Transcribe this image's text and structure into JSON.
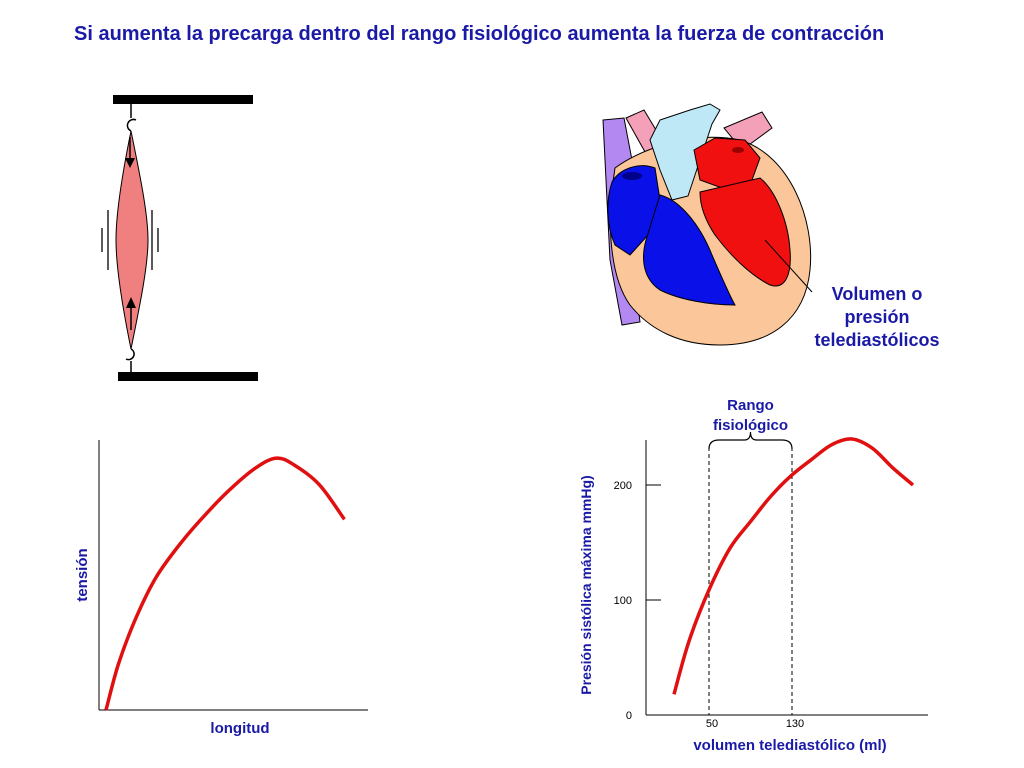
{
  "title": "Si aumenta la precarga dentro del rango fisiológico aumenta la fuerza de contracción",
  "heart_label": {
    "line1": "Volumen o",
    "line2": "presión",
    "line3": "telediastólicos"
  },
  "colors": {
    "text_blue": "#1a1aa6",
    "curve_red": "#e01010",
    "muscle_fill": "#f08080",
    "ventricle_blue": "#0a10e8",
    "ventricle_red": "#f01010",
    "heart_skin": "#fbc79a",
    "vessel_purple": "#b388f0",
    "vessel_light_blue": "#bfe8f7",
    "vessel_pink": "#f4a0b8"
  },
  "chart_data": [
    {
      "type": "line",
      "title": "",
      "xlabel": "longitud",
      "ylabel": "tensión",
      "series": [
        {
          "x": [
            0,
            5,
            12,
            20,
            30,
            40,
            50,
            60,
            68,
            75,
            85,
            95
          ],
          "y": [
            0,
            40,
            80,
            115,
            145,
            170,
            192,
            210,
            218,
            212,
            195,
            165
          ]
        }
      ],
      "ticks": false
    },
    {
      "type": "line",
      "title": "",
      "xlabel": "volumen telediastólico (ml)",
      "ylabel": "Presión sistólica máxima mmHg)",
      "yticks": [
        "0",
        "100",
        "200"
      ],
      "xticks": [
        "50",
        "130"
      ],
      "annotation": {
        "line1": "Rango",
        "line2": "fisiológico",
        "range": [
          50,
          130
        ]
      },
      "ylim": [
        0,
        240
      ],
      "series": [
        {
          "x": [
            15,
            30,
            50,
            70,
            90,
            110,
            130,
            150,
            170,
            190,
            210,
            230,
            250
          ],
          "y": [
            18,
            65,
            110,
            145,
            168,
            190,
            208,
            222,
            235,
            240,
            232,
            215,
            200
          ]
        }
      ]
    }
  ]
}
